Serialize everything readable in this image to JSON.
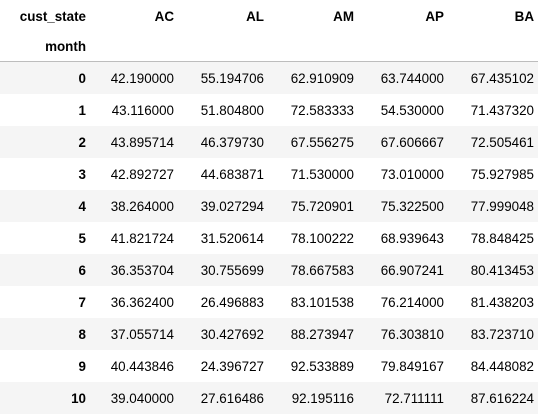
{
  "table": {
    "column_header_name": "cust_state",
    "index_name": "month",
    "columns": [
      "AC",
      "AL",
      "AM",
      "AP",
      "BA"
    ],
    "rows": [
      {
        "index": "0",
        "values": [
          "42.190000",
          "55.194706",
          "62.910909",
          "63.744000",
          "67.435102"
        ]
      },
      {
        "index": "1",
        "values": [
          "43.116000",
          "51.804800",
          "72.583333",
          "54.530000",
          "71.437320"
        ]
      },
      {
        "index": "2",
        "values": [
          "43.895714",
          "46.379730",
          "67.556275",
          "67.606667",
          "72.505461"
        ]
      },
      {
        "index": "3",
        "values": [
          "42.892727",
          "44.683871",
          "71.530000",
          "73.010000",
          "75.927985"
        ]
      },
      {
        "index": "4",
        "values": [
          "38.264000",
          "39.027294",
          "75.720901",
          "75.322500",
          "77.999048"
        ]
      },
      {
        "index": "5",
        "values": [
          "41.821724",
          "31.520614",
          "78.100222",
          "68.939643",
          "78.848425"
        ]
      },
      {
        "index": "6",
        "values": [
          "36.353704",
          "30.755699",
          "78.667583",
          "66.907241",
          "80.413453"
        ]
      },
      {
        "index": "7",
        "values": [
          "36.362400",
          "26.496883",
          "83.101538",
          "76.214000",
          "81.438203"
        ]
      },
      {
        "index": "8",
        "values": [
          "37.055714",
          "30.427692",
          "88.273947",
          "76.303810",
          "83.723710"
        ]
      },
      {
        "index": "9",
        "values": [
          "40.443846",
          "24.396727",
          "92.533889",
          "79.849167",
          "84.448082"
        ]
      },
      {
        "index": "10",
        "values": [
          "39.040000",
          "27.616486",
          "92.195116",
          "72.711111",
          "87.616224"
        ]
      }
    ]
  }
}
